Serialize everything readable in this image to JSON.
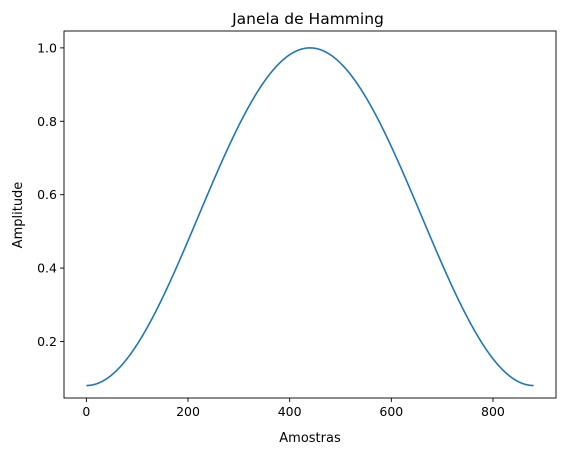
{
  "chart_data": {
    "type": "line",
    "title": "Janela de Hamming",
    "xlabel": "Amostras",
    "ylabel": "Amplitude",
    "xlim": [
      -44,
      924
    ],
    "ylim": [
      0.046,
      1.046
    ],
    "xticks": [
      0,
      200,
      400,
      600,
      800
    ],
    "yticks": [
      0.2,
      0.4,
      0.6,
      0.8,
      1.0
    ],
    "xtick_labels": [
      "0",
      "200",
      "400",
      "600",
      "800"
    ],
    "ytick_labels": [
      "0.2",
      "0.4",
      "0.6",
      "0.8",
      "1.0"
    ],
    "grid": false,
    "legend": false,
    "series": [
      {
        "color": "#1f77b4",
        "x": [
          0,
          20,
          40,
          60,
          80,
          100,
          120,
          140,
          160,
          180,
          200,
          220,
          240,
          260,
          280,
          300,
          320,
          340,
          360,
          380,
          400,
          420,
          440,
          460,
          480,
          500,
          520,
          540,
          560,
          580,
          600,
          620,
          640,
          660,
          680,
          700,
          720,
          740,
          760,
          780,
          800,
          820,
          840,
          860,
          880
        ],
        "y": [
          0.08,
          0.0847,
          0.0986,
          0.1214,
          0.1527,
          0.1916,
          0.2375,
          0.2893,
          0.3458,
          0.4057,
          0.4676,
          0.5302,
          0.5921,
          0.6518,
          0.7079,
          0.7591,
          0.8043,
          0.8424,
          0.8724,
          0.8937,
          0.9058,
          0.9987,
          1.0,
          0.9953,
          0.9814,
          0.9586,
          0.9273,
          0.8884,
          0.8425,
          0.7907,
          0.7342,
          0.6743,
          0.6124,
          0.5498,
          0.4879,
          0.4282,
          0.3721,
          0.3209,
          0.2757,
          0.2376,
          0.2076,
          0.1863,
          0.1742,
          0.0847,
          0.08
        ]
      }
    ]
  }
}
